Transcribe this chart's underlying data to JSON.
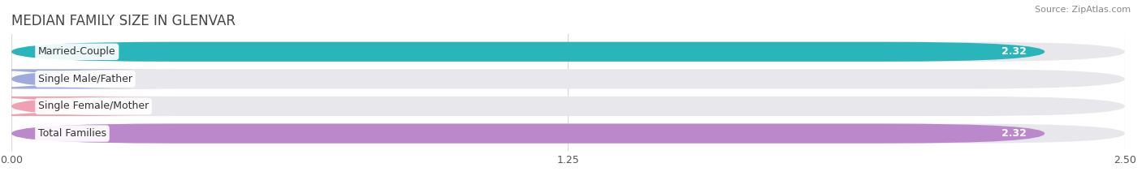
{
  "title": "MEDIAN FAMILY SIZE IN GLENVAR",
  "source": "Source: ZipAtlas.com",
  "categories": [
    "Married-Couple",
    "Single Male/Father",
    "Single Female/Mother",
    "Total Families"
  ],
  "values": [
    2.32,
    0.0,
    0.0,
    2.32
  ],
  "bar_colors": [
    "#2ab5bb",
    "#a0aadd",
    "#f0a0b0",
    "#bb88cc"
  ],
  "bar_bg_color": "#e8e8ec",
  "xlim": [
    0,
    2.5
  ],
  "xticks": [
    0.0,
    1.25,
    2.5
  ],
  "xtick_labels": [
    "0.00",
    "1.25",
    "2.50"
  ],
  "value_label_color": "#ffffff",
  "value_label_fontsize": 9,
  "category_label_fontsize": 9,
  "title_fontsize": 12,
  "source_fontsize": 8,
  "bar_height": 0.72,
  "background_color": "#ffffff",
  "grid_color": "#d8d8d8",
  "row_bg_color": "#ffffff"
}
